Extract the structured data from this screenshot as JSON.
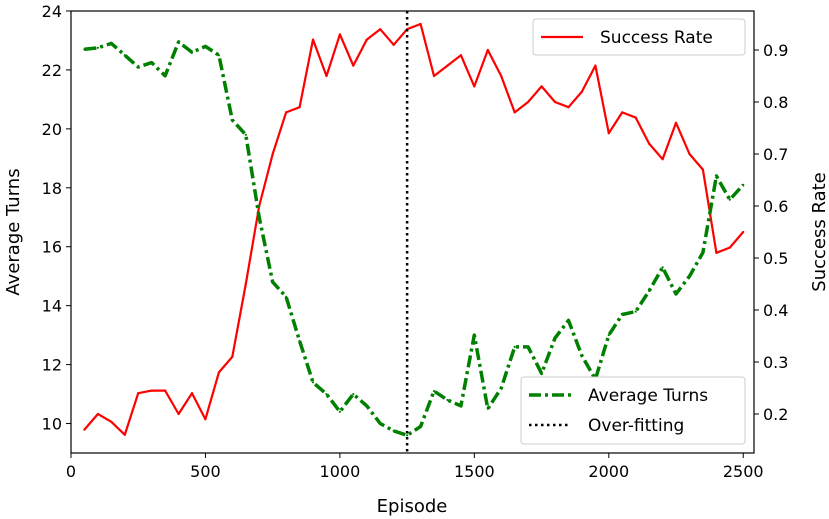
{
  "chart_data": {
    "type": "line",
    "xlabel": "Episode",
    "ylabel_left": "Average Turns",
    "ylabel_right": "Success Rate",
    "xlim": [
      0,
      2540
    ],
    "ylim_left": [
      9.0,
      24.0
    ],
    "ylim_right": [
      0.125,
      0.975
    ],
    "x_ticks": [
      0,
      500,
      1000,
      1500,
      2000,
      2500
    ],
    "y_left_ticks": [
      10,
      12,
      14,
      16,
      18,
      20,
      22,
      24
    ],
    "y_right_ticks": [
      0.2,
      0.3,
      0.4,
      0.5,
      0.6,
      0.7,
      0.8,
      0.9
    ],
    "grid": false,
    "series": [
      {
        "name": "Success Rate",
        "axis": "right",
        "color": "#ff0000",
        "style": "solid",
        "x": [
          50,
          100,
          150,
          200,
          250,
          300,
          350,
          400,
          450,
          500,
          550,
          600,
          650,
          700,
          750,
          800,
          850,
          900,
          950,
          1000,
          1050,
          1100,
          1150,
          1200,
          1250,
          1300,
          1350,
          1400,
          1450,
          1500,
          1550,
          1600,
          1650,
          1700,
          1750,
          1800,
          1850,
          1900,
          1950,
          2000,
          2050,
          2100,
          2150,
          2200,
          2250,
          2300,
          2350,
          2400,
          2450,
          2500
        ],
        "values": [
          0.17,
          0.2,
          0.185,
          0.16,
          0.24,
          0.245,
          0.245,
          0.2,
          0.24,
          0.19,
          0.28,
          0.31,
          0.45,
          0.6,
          0.7,
          0.78,
          0.79,
          0.92,
          0.85,
          0.93,
          0.87,
          0.92,
          0.94,
          0.91,
          0.94,
          0.95,
          0.85,
          0.87,
          0.89,
          0.83,
          0.9,
          0.85,
          0.78,
          0.8,
          0.83,
          0.8,
          0.79,
          0.82,
          0.87,
          0.74,
          0.78,
          0.77,
          0.72,
          0.69,
          0.76,
          0.7,
          0.67,
          0.51,
          0.52,
          0.55
        ]
      },
      {
        "name": "Average Turns",
        "axis": "left",
        "color": "#008000",
        "style": "dashdot",
        "x": [
          50,
          100,
          150,
          200,
          250,
          300,
          350,
          400,
          450,
          500,
          550,
          600,
          650,
          700,
          750,
          800,
          850,
          900,
          950,
          1000,
          1050,
          1100,
          1150,
          1200,
          1250,
          1300,
          1350,
          1400,
          1450,
          1500,
          1550,
          1600,
          1650,
          1700,
          1750,
          1800,
          1850,
          1900,
          1950,
          2000,
          2050,
          2100,
          2150,
          2200,
          2250,
          2300,
          2350,
          2400,
          2450,
          2500
        ],
        "values": [
          22.7,
          22.75,
          22.9,
          22.5,
          22.1,
          22.25,
          21.8,
          22.95,
          22.6,
          22.8,
          22.5,
          20.3,
          19.8,
          17.0,
          14.8,
          14.3,
          12.8,
          11.4,
          11.0,
          10.4,
          11.0,
          10.6,
          10.0,
          9.75,
          9.6,
          9.9,
          11.1,
          10.8,
          10.6,
          13.0,
          10.5,
          11.2,
          12.6,
          12.6,
          11.7,
          12.9,
          13.5,
          12.3,
          11.5,
          13.0,
          13.7,
          13.8,
          14.5,
          15.3,
          14.4,
          15.0,
          15.8,
          18.4,
          17.6,
          18.1
        ]
      }
    ],
    "vlines": [
      {
        "name": "Over-fitting",
        "x": 1250,
        "color": "#000000",
        "style": "dotted"
      }
    ],
    "legend_top": {
      "position": "top-right",
      "entries": [
        "Success Rate"
      ]
    },
    "legend_bottom": {
      "position": "bottom-right",
      "entries": [
        "Average Turns",
        "Over-fitting"
      ]
    }
  }
}
